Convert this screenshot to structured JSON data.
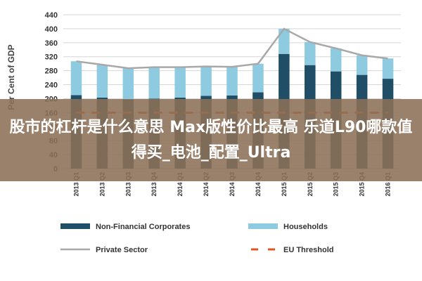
{
  "overlay": {
    "text": "股市的杠杆是什么意思 Max版性价比最高 乐道L90哪款值得买_电池_配置_Ultra"
  },
  "chart_data": {
    "type": "bar",
    "ylabel": "Per Cent of GDP",
    "ylim": [
      0,
      440
    ],
    "yticks": [
      0,
      40,
      80,
      120,
      160,
      200,
      240,
      280,
      320,
      360,
      400,
      440
    ],
    "grid": true,
    "legend_position": "bottom",
    "categories": [
      "2013 Q1",
      "2013 Q2",
      "2013 Q3",
      "2013 Q4",
      "2014 Q1",
      "2014 Q2",
      "2014 Q3",
      "2014 Q4",
      "2015 Q1",
      "2015 Q2",
      "2015 Q3",
      "2015 Q4",
      "2016 Q1"
    ],
    "series": [
      {
        "name": "Non-Financial Corporates",
        "kind": "stacked-bar",
        "color": "#1f4e66",
        "values": [
          210,
          203,
          198,
          200,
          203,
          208,
          209,
          218,
          328,
          296,
          278,
          268,
          257
        ]
      },
      {
        "name": "Households",
        "kind": "stacked-bar",
        "color": "#8fcbe0",
        "values": [
          97,
          94,
          89,
          90,
          87,
          84,
          82,
          82,
          72,
          66,
          66,
          56,
          58
        ]
      },
      {
        "name": "Private Sector",
        "kind": "line",
        "color": "#a8a8a8",
        "values": [
          307,
          297,
          287,
          290,
          290,
          292,
          291,
          300,
          400,
          362,
          344,
          324,
          315
        ]
      },
      {
        "name": "EU Threshold",
        "kind": "dashed-line",
        "color": "#e5541f",
        "values": [
          160,
          160,
          160,
          160,
          160,
          160,
          160,
          160,
          160,
          160,
          160,
          160,
          160
        ]
      }
    ]
  }
}
